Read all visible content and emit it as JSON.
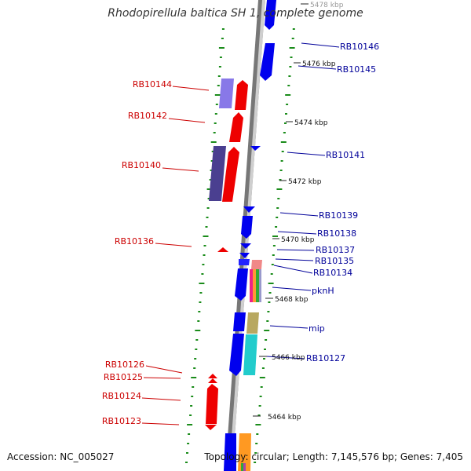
{
  "title": "Rhodopirellula baltica SH 1, complete genome",
  "accession_text": "Accession: NC_005027",
  "summary_text": "Topology: circular; Length: 7,145,576 bp; Genes: 7,405",
  "scale_labels": [
    "5478 kbp",
    "5476 kbp",
    "5474 kbp",
    "5472 kbp",
    "5470 kbp",
    "5468 kbp",
    "5466 kbp",
    "5464 kbp"
  ],
  "left_gene_labels": [
    "RB10144",
    "RB10142",
    "RB10140",
    "RB10136",
    "RB10126",
    "RB10125",
    "RB10124",
    "RB10123"
  ],
  "right_gene_labels": [
    "RB10146",
    "RB10145",
    "RB10141",
    "RB10139",
    "RB10138",
    "RB10137",
    "RB10135",
    "RB10134",
    "pknH",
    "mip",
    "RB10127"
  ],
  "colors": {
    "reverse_strand": "#ff0000",
    "forward_strand": "#0000ee",
    "left_label": "#cc0000",
    "right_label": "#000099",
    "backbone": "#888888",
    "gc_marks": "#1a8c1a"
  }
}
